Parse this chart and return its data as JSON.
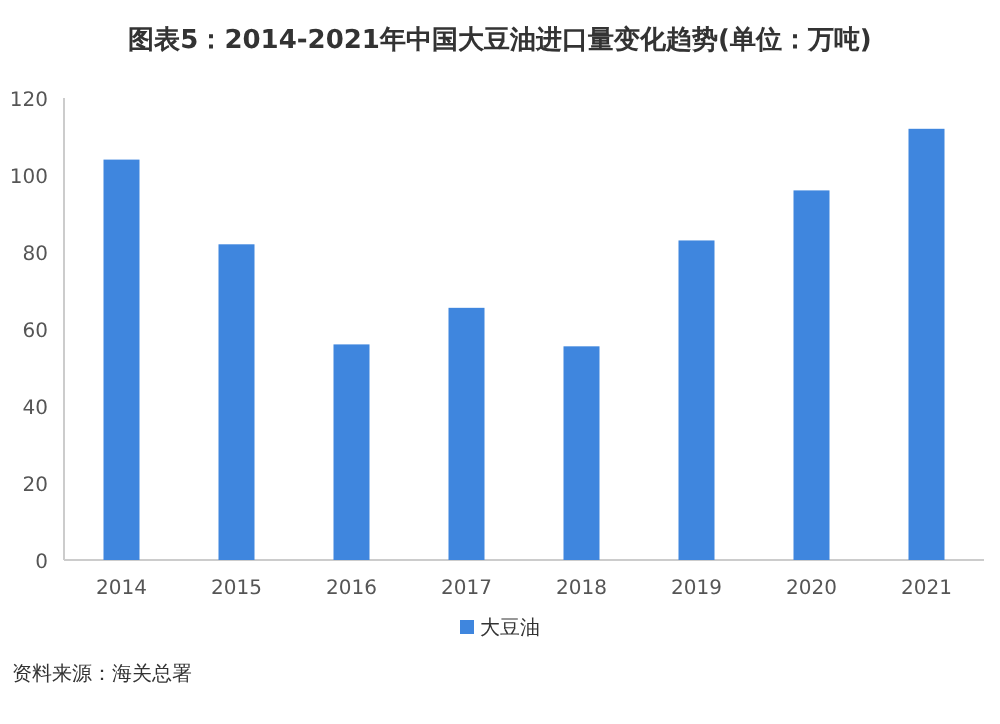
{
  "chart_data": {
    "type": "bar",
    "title": "图表5：2014-2021年中国大豆油进口量变化趋势(单位：万吨)",
    "categories": [
      "2014",
      "2015",
      "2016",
      "2017",
      "2018",
      "2019",
      "2020",
      "2021"
    ],
    "series": [
      {
        "name": "大豆油",
        "color": "#3f86de",
        "values": [
          104,
          82,
          56,
          65.5,
          55.5,
          83,
          96,
          112
        ]
      }
    ],
    "ylim": [
      0,
      120
    ],
    "yticks": [
      0,
      20,
      40,
      60,
      80,
      100,
      120
    ],
    "grid": false,
    "legend": "bottom",
    "annotations": [
      "资料来源：海关总署"
    ]
  }
}
